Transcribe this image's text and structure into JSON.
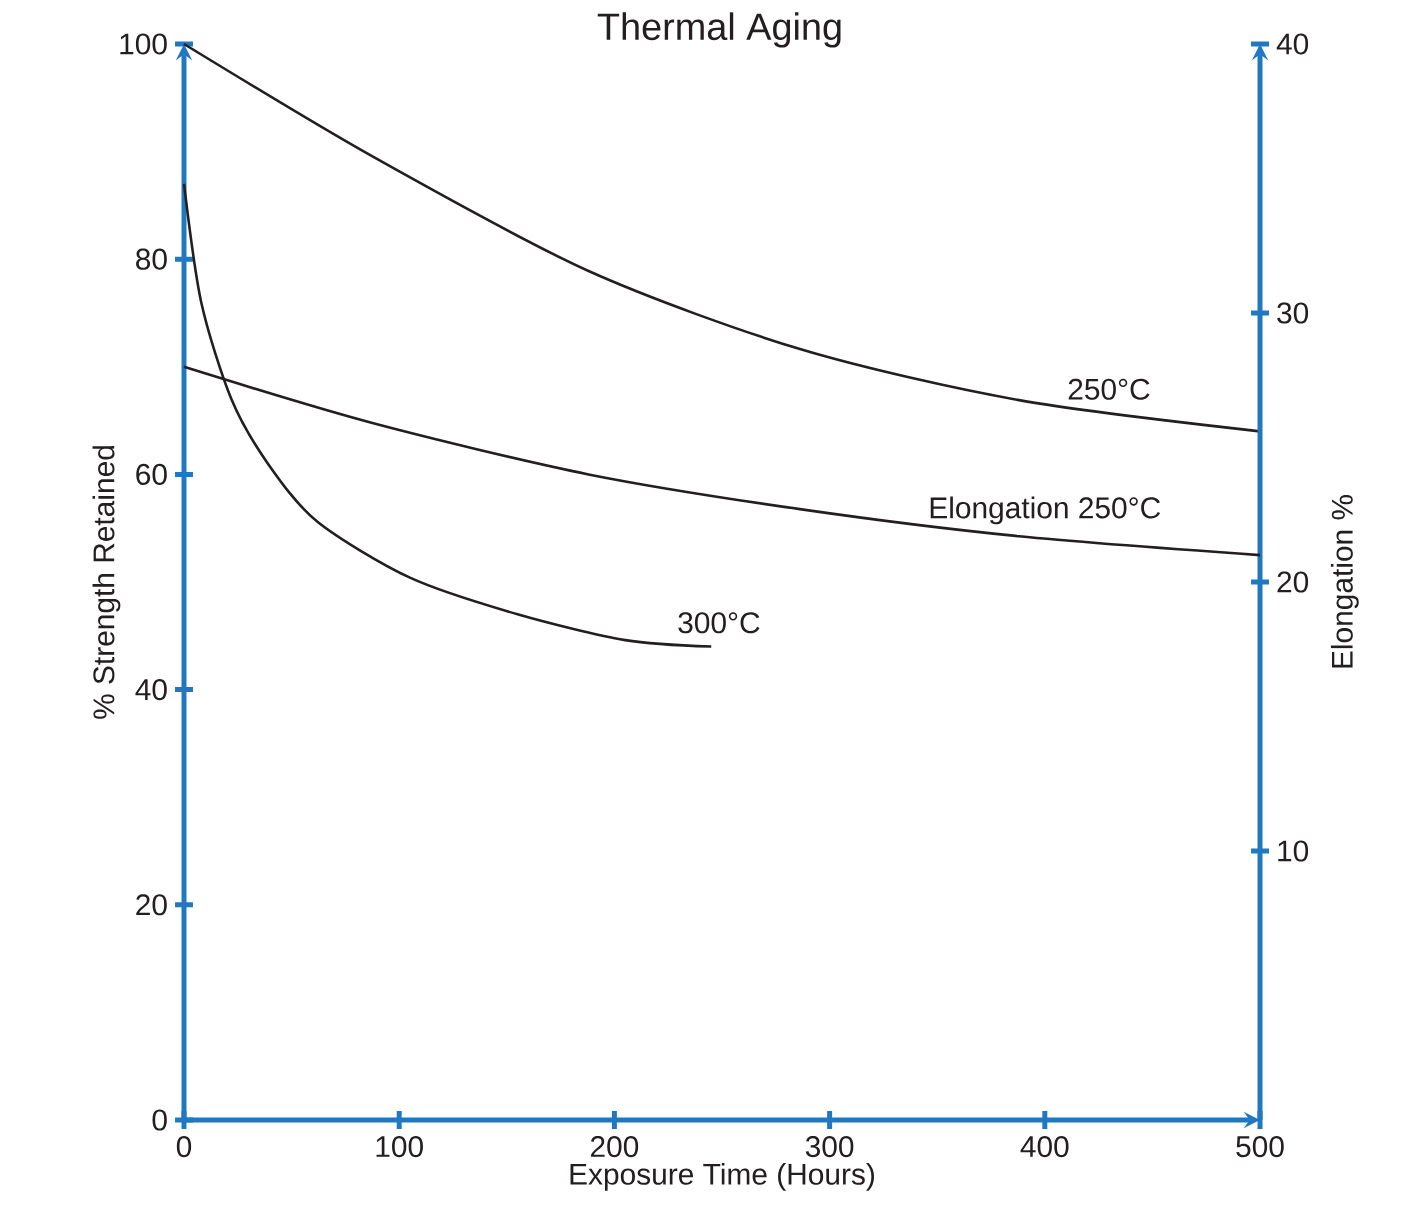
{
  "chart_data": {
    "type": "line",
    "title": "Thermal Aging",
    "xlabel": "Exposure Time (Hours)",
    "ylabel": "% Strength Retained",
    "y2label": "Elongation %",
    "xlim": [
      0,
      500
    ],
    "xticks": [
      0,
      100,
      200,
      300,
      400,
      500
    ],
    "ylim": [
      0,
      100
    ],
    "yticks": [
      0,
      20,
      40,
      60,
      80,
      100
    ],
    "y2lim": [
      0,
      40
    ],
    "y2ticks": [
      10,
      20,
      30,
      40
    ],
    "grid": false,
    "legend": false,
    "marker": "none",
    "line_style": "solid",
    "series": [
      {
        "name": "250°C",
        "color": "#231f20",
        "x": [
          0,
          88,
          188,
          287,
          388,
          500
        ],
        "values": [
          100,
          89.5,
          78.9,
          71.6,
          66.9,
          64
        ]
      },
      {
        "name": "Elongation 250°C",
        "color": "#231f20",
        "axis": "y2",
        "x": [
          0,
          88,
          188,
          287,
          388,
          500
        ],
        "values": [
          28,
          25.9,
          24,
          22.7,
          21.7,
          21
        ]
      },
      {
        "name": "300°C",
        "color": "#231f20",
        "x": [
          0,
          8,
          22,
          39,
          62,
          105,
          155,
          205,
          245
        ],
        "values": [
          87,
          76,
          67,
          61,
          55.6,
          50.4,
          47,
          44.6,
          44
        ]
      }
    ]
  }
}
